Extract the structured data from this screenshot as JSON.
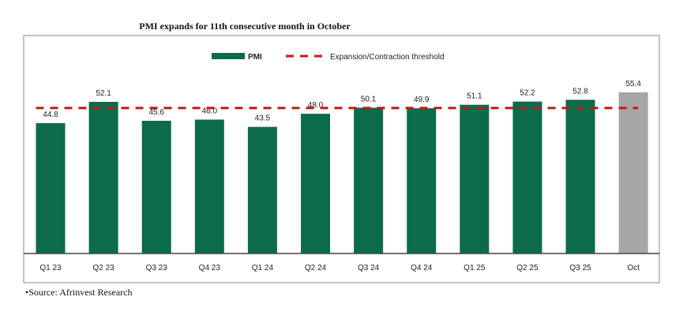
{
  "chart_data": {
    "type": "bar",
    "title": "PMI expands for 11th consecutive month in October",
    "categories": [
      "Q1 23",
      "Q2 23",
      "Q3 23",
      "Q4 23",
      "Q1 24",
      "Q2 24",
      "Q3 24",
      "Q4 24",
      "Q1 25",
      "Q2 25",
      "Q3 25",
      "Oct"
    ],
    "series": [
      {
        "name": "PMI",
        "values": [
          44.8,
          52.1,
          45.6,
          46.0,
          43.5,
          48.0,
          50.1,
          49.9,
          51.1,
          52.2,
          52.8,
          55.4
        ]
      }
    ],
    "threshold": {
      "name": "Expansion/Contraction threshold",
      "value": 50
    },
    "ylim": [
      0,
      70
    ],
    "grid": false,
    "legend": "top",
    "colors": {
      "bar": "#0b6b4b",
      "highlight": "#a6a6a6",
      "threshold": "#c0191c"
    },
    "source": "•Source: Afrinvest Research"
  }
}
